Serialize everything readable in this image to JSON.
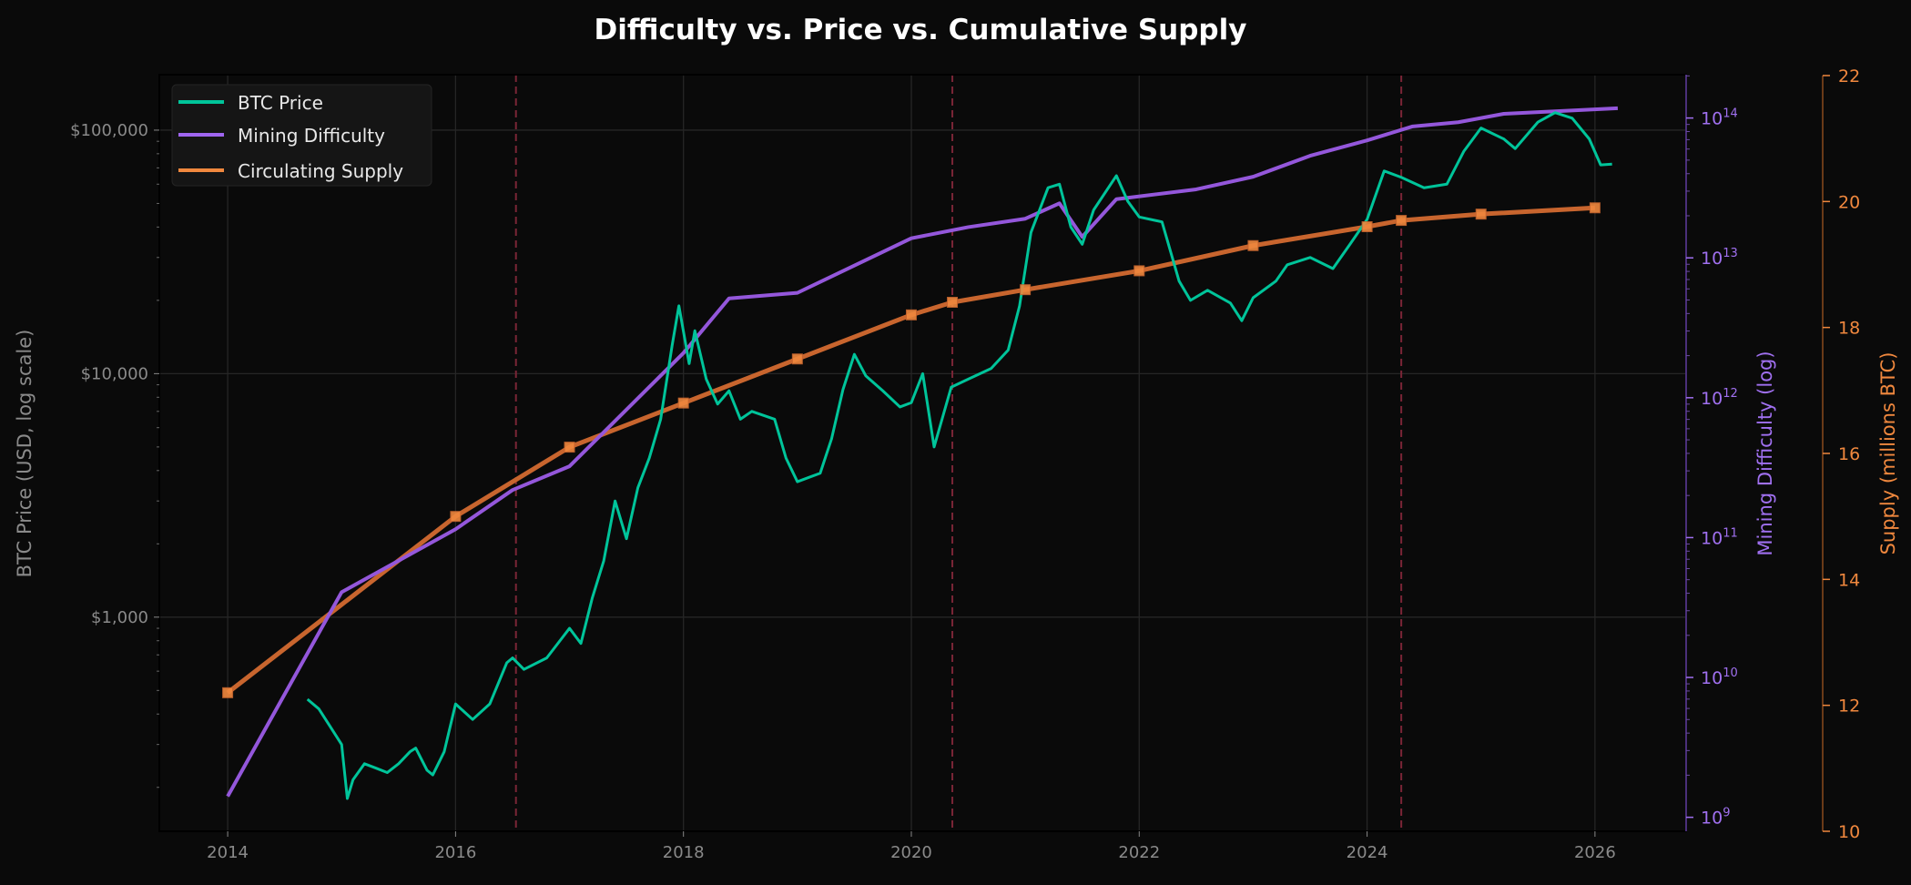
{
  "chart_data": {
    "type": "line",
    "title": "Difficulty vs. Price vs. Cumulative Supply",
    "xlim": [
      2013.4,
      2026.8
    ],
    "xticks": [
      2014,
      2016,
      2018,
      2020,
      2022,
      2024,
      2026
    ],
    "grid": true,
    "legend_placement": "top-left",
    "colors": {
      "background": "#0a0a0a",
      "price": "#00c49a",
      "difficulty": "#9457db",
      "supply": "#f0883e",
      "supply_line": "#c8652e",
      "halving": "#7a2536",
      "grid": "#262626"
    },
    "halvings": [
      2016.53,
      2020.36,
      2024.3
    ],
    "axes": {
      "price": {
        "label": "BTC Price (USD, log scale)",
        "scale": "log",
        "ylim": [
          132,
          169000
        ],
        "ticks": [
          1000,
          10000,
          100000
        ],
        "tick_labels": [
          "$1,000",
          "$10,000",
          "$100,000"
        ]
      },
      "difficulty": {
        "label": "Mining Difficulty (log)",
        "scale": "log",
        "ylim": [
          8.9,
          14.31
        ],
        "tick_exponents": [
          9,
          10,
          11,
          12,
          13,
          14
        ]
      },
      "supply": {
        "label": "Supply (millions BTC)",
        "scale": "linear",
        "ylim": [
          10,
          22
        ],
        "ticks": [
          10,
          12,
          14,
          16,
          18,
          20,
          22
        ]
      }
    },
    "series": [
      {
        "name": "BTC Price",
        "axis": "price",
        "x": [
          2014.7,
          2014.8,
          2014.9,
          2015.0,
          2015.05,
          2015.1,
          2015.2,
          2015.3,
          2015.4,
          2015.5,
          2015.6,
          2015.65,
          2015.75,
          2015.8,
          2015.9,
          2016.0,
          2016.15,
          2016.3,
          2016.45,
          2016.5,
          2016.6,
          2016.8,
          2017.0,
          2017.1,
          2017.2,
          2017.3,
          2017.4,
          2017.5,
          2017.6,
          2017.7,
          2017.8,
          2017.9,
          2017.96,
          2018.05,
          2018.1,
          2018.2,
          2018.3,
          2018.4,
          2018.5,
          2018.6,
          2018.8,
          2018.9,
          2019.0,
          2019.2,
          2019.3,
          2019.4,
          2019.5,
          2019.6,
          2019.75,
          2019.9,
          2020.0,
          2020.1,
          2020.2,
          2020.35,
          2020.5,
          2020.7,
          2020.85,
          2020.95,
          2021.05,
          2021.2,
          2021.3,
          2021.4,
          2021.5,
          2021.6,
          2021.8,
          2021.9,
          2022.0,
          2022.2,
          2022.35,
          2022.45,
          2022.6,
          2022.8,
          2022.9,
          2023.0,
          2023.2,
          2023.3,
          2023.5,
          2023.7,
          2023.85,
          2024.0,
          2024.15,
          2024.3,
          2024.5,
          2024.7,
          2024.85,
          2025.0,
          2025.2,
          2025.3,
          2025.5,
          2025.65,
          2025.8,
          2025.95,
          2026.05,
          2026.15
        ],
        "values": [
          460,
          420,
          355,
          300,
          180,
          215,
          250,
          240,
          230,
          250,
          280,
          290,
          235,
          225,
          280,
          440,
          380,
          440,
          650,
          680,
          610,
          680,
          900,
          780,
          1200,
          1700,
          3000,
          2100,
          3400,
          4500,
          6500,
          13000,
          19000,
          11000,
          15000,
          9500,
          7500,
          8500,
          6500,
          7000,
          6500,
          4500,
          3600,
          3900,
          5400,
          8600,
          12000,
          9800,
          8500,
          7300,
          7600,
          10000,
          5000,
          8800,
          9500,
          10500,
          12500,
          19000,
          38000,
          58000,
          60000,
          40000,
          34000,
          47000,
          65000,
          51000,
          44000,
          42000,
          24000,
          20000,
          22000,
          19500,
          16500,
          20500,
          24000,
          28000,
          30000,
          27000,
          34000,
          43000,
          68000,
          64000,
          58000,
          60000,
          82000,
          102000,
          92000,
          84000,
          108000,
          118000,
          112000,
          92000,
          72000,
          72500
        ]
      },
      {
        "name": "Mining Difficulty",
        "axis": "difficulty",
        "x": [
          2014.0,
          2015.0,
          2016.0,
          2016.5,
          2017.0,
          2018.0,
          2018.4,
          2019.0,
          2020.0,
          2020.5,
          2021.0,
          2021.3,
          2021.5,
          2021.8,
          2022.5,
          2023.0,
          2023.5,
          2024.0,
          2024.4,
          2024.8,
          2025.2,
          2026.2
        ],
        "values_log10": [
          9.15,
          10.61,
          11.06,
          11.34,
          11.51,
          12.32,
          12.71,
          12.75,
          13.14,
          13.22,
          13.28,
          13.39,
          13.15,
          13.42,
          13.49,
          13.58,
          13.73,
          13.84,
          13.94,
          13.97,
          14.03,
          14.07
        ]
      },
      {
        "name": "Circulating Supply",
        "axis": "supply",
        "x": [
          2014.0,
          2015.0,
          2016.0,
          2017.0,
          2018.0,
          2019.0,
          2020.0,
          2020.36,
          2021.0,
          2022.0,
          2023.0,
          2024.0,
          2024.3,
          2025.0,
          2026.0
        ],
        "values": [
          12.2,
          13.6,
          15.0,
          16.1,
          16.8,
          17.5,
          18.2,
          18.4,
          18.6,
          18.9,
          19.3,
          19.6,
          19.7,
          19.8,
          19.9
        ],
        "markers": [
          true,
          false,
          true,
          true,
          true,
          true,
          true,
          true,
          true,
          true,
          true,
          true,
          true,
          true,
          true
        ]
      }
    ]
  }
}
